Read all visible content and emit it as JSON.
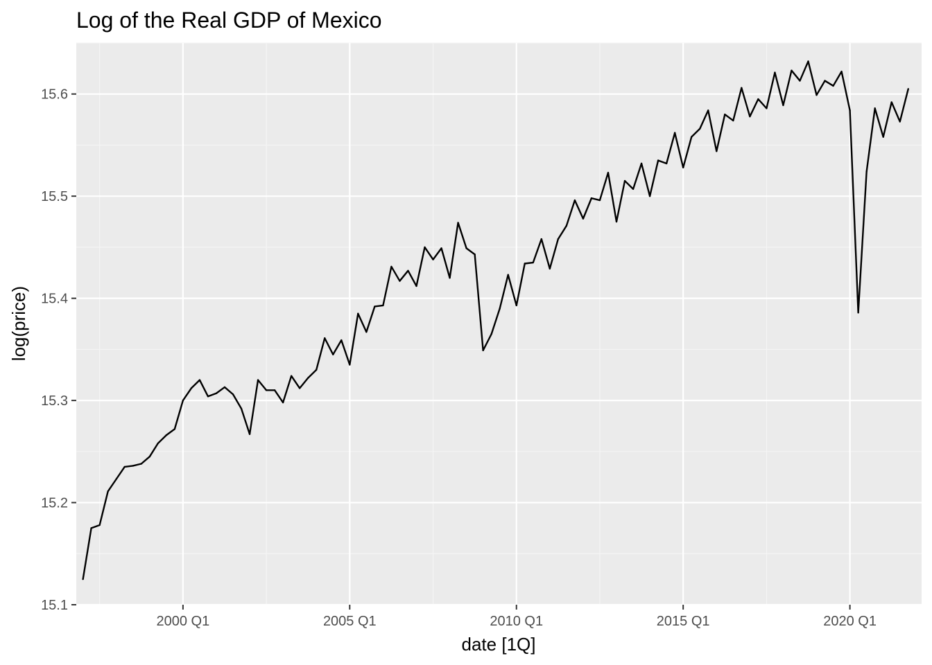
{
  "chart_data": {
    "type": "line",
    "title": "Log of the Real GDP of Mexico",
    "xlabel": "date [1Q]",
    "ylabel": "log(price)",
    "x_scale": "quarterly",
    "xlim": [
      1996.8,
      2022.15
    ],
    "ylim": [
      15.1,
      15.65
    ],
    "grid": true,
    "legend": "none",
    "colors": {
      "panel_background": "#ebebeb",
      "grid_major": "#ffffff",
      "grid_minor": "#f5f5f5",
      "line": "#000000",
      "tick_text": "#4d4d4d",
      "tick_mark": "#333333"
    },
    "x_ticks": [
      {
        "value": 2000.0,
        "label": "2000 Q1"
      },
      {
        "value": 2005.0,
        "label": "2005 Q1"
      },
      {
        "value": 2010.0,
        "label": "2010 Q1"
      },
      {
        "value": 2015.0,
        "label": "2015 Q1"
      },
      {
        "value": 2020.0,
        "label": "2020 Q1"
      }
    ],
    "y_ticks": [
      {
        "value": 15.1,
        "label": "15.1"
      },
      {
        "value": 15.2,
        "label": "15.2"
      },
      {
        "value": 15.3,
        "label": "15.3"
      },
      {
        "value": 15.4,
        "label": "15.4"
      },
      {
        "value": 15.5,
        "label": "15.5"
      },
      {
        "value": 15.6,
        "label": "15.6"
      }
    ],
    "series": [
      {
        "x": [
          "1997 Q1",
          "1997 Q2",
          "1997 Q3",
          "1997 Q4",
          "1998 Q1",
          "1998 Q2",
          "1998 Q3",
          "1998 Q4",
          "1999 Q1",
          "1999 Q2",
          "1999 Q3",
          "1999 Q4",
          "2000 Q1",
          "2000 Q2",
          "2000 Q3",
          "2000 Q4",
          "2001 Q1",
          "2001 Q2",
          "2001 Q3",
          "2001 Q4",
          "2002 Q1",
          "2002 Q2",
          "2002 Q3",
          "2002 Q4",
          "2003 Q1",
          "2003 Q2",
          "2003 Q3",
          "2003 Q4",
          "2004 Q1",
          "2004 Q2",
          "2004 Q3",
          "2004 Q4",
          "2005 Q1",
          "2005 Q2",
          "2005 Q3",
          "2005 Q4",
          "2006 Q1",
          "2006 Q2",
          "2006 Q3",
          "2006 Q4",
          "2007 Q1",
          "2007 Q2",
          "2007 Q3",
          "2007 Q4",
          "2008 Q1",
          "2008 Q2",
          "2008 Q3",
          "2008 Q4",
          "2009 Q1",
          "2009 Q2",
          "2009 Q3",
          "2009 Q4",
          "2010 Q1",
          "2010 Q2",
          "2010 Q3",
          "2010 Q4",
          "2011 Q1",
          "2011 Q2",
          "2011 Q3",
          "2011 Q4",
          "2012 Q1",
          "2012 Q2",
          "2012 Q3",
          "2012 Q4",
          "2013 Q1",
          "2013 Q2",
          "2013 Q3",
          "2013 Q4",
          "2014 Q1",
          "2014 Q2",
          "2014 Q3",
          "2014 Q4",
          "2015 Q1",
          "2015 Q2",
          "2015 Q3",
          "2015 Q4",
          "2016 Q1",
          "2016 Q2",
          "2016 Q3",
          "2016 Q4",
          "2017 Q1",
          "2017 Q2",
          "2017 Q3",
          "2017 Q4",
          "2018 Q1",
          "2018 Q2",
          "2018 Q3",
          "2018 Q4",
          "2019 Q1",
          "2019 Q2",
          "2019 Q3",
          "2019 Q4",
          "2020 Q1",
          "2020 Q2",
          "2020 Q3",
          "2020 Q4",
          "2021 Q1",
          "2021 Q2",
          "2021 Q3",
          "2021 Q4"
        ],
        "values": [
          15.125,
          15.175,
          15.178,
          15.211,
          15.223,
          15.235,
          15.236,
          15.238,
          15.245,
          15.258,
          15.266,
          15.272,
          15.3,
          15.312,
          15.32,
          15.304,
          15.307,
          15.313,
          15.306,
          15.292,
          15.267,
          15.32,
          15.31,
          15.31,
          15.298,
          15.324,
          15.312,
          15.322,
          15.33,
          15.361,
          15.345,
          15.359,
          15.335,
          15.385,
          15.367,
          15.392,
          15.393,
          15.431,
          15.417,
          15.427,
          15.412,
          15.45,
          15.438,
          15.449,
          15.42,
          15.474,
          15.449,
          15.443,
          15.349,
          15.365,
          15.39,
          15.423,
          15.393,
          15.434,
          15.435,
          15.458,
          15.429,
          15.458,
          15.471,
          15.496,
          15.478,
          15.498,
          15.496,
          15.523,
          15.475,
          15.515,
          15.507,
          15.532,
          15.5,
          15.535,
          15.532,
          15.562,
          15.528,
          15.558,
          15.566,
          15.584,
          15.544,
          15.58,
          15.574,
          15.606,
          15.578,
          15.595,
          15.586,
          15.621,
          15.589,
          15.623,
          15.613,
          15.632,
          15.599,
          15.613,
          15.608,
          15.622,
          15.584,
          15.386,
          15.524,
          15.586,
          15.558,
          15.592,
          15.573,
          15.605
        ]
      }
    ]
  }
}
